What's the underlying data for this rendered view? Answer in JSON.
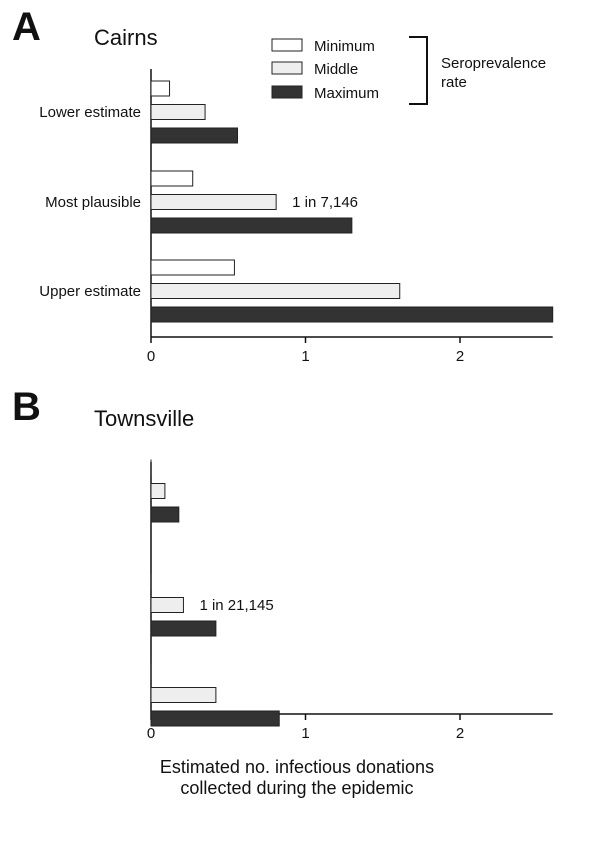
{
  "chart_data": [
    {
      "type": "bar",
      "orientation": "horizontal",
      "panel": "A",
      "title": "Cairns",
      "categories": [
        "Lower estimate",
        "Most plausible",
        "Upper estimate"
      ],
      "series": [
        {
          "name": "Minimum",
          "color": "#ffffff",
          "values": [
            0.12,
            0.27,
            0.54
          ]
        },
        {
          "name": "Middle",
          "color": "#eeeeee",
          "values": [
            0.35,
            0.81,
            1.61
          ]
        },
        {
          "name": "Maximum",
          "color": "#333333",
          "values": [
            0.56,
            1.3,
            2.6
          ]
        }
      ],
      "annotation": {
        "text": "1 in 7,146",
        "category_index": 1
      },
      "xlim": [
        0,
        2.6
      ],
      "xticks": [
        "0",
        "1",
        "2"
      ],
      "grid": false,
      "legend": {
        "placement": "top-right",
        "entries": [
          "Minimum",
          "Middle",
          "Maximum"
        ],
        "group_label": [
          "Seroprevalence",
          "rate"
        ]
      }
    },
    {
      "type": "bar",
      "orientation": "horizontal",
      "panel": "B",
      "title": "Townsville",
      "categories": [
        "",
        "",
        ""
      ],
      "series": [
        {
          "name": "Minimum",
          "color": "#ffffff",
          "values": [
            0.0,
            0.0,
            0.0
          ]
        },
        {
          "name": "Middle",
          "color": "#eeeeee",
          "values": [
            0.09,
            0.21,
            0.42
          ]
        },
        {
          "name": "Maximum",
          "color": "#333333",
          "values": [
            0.18,
            0.42,
            0.83
          ]
        }
      ],
      "annotation": {
        "text": "1 in 21,145",
        "category_index": 1
      },
      "xlim": [
        0,
        2.6
      ],
      "xticks": [
        "0",
        "1",
        "2"
      ],
      "xlabel": [
        "Estimated no. infectious donations",
        "collected during the epidemic"
      ],
      "grid": false
    }
  ]
}
